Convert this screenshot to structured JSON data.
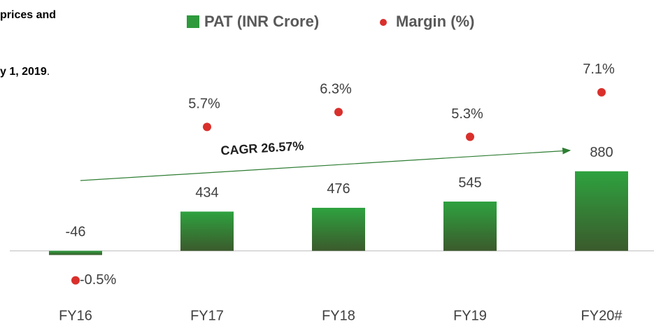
{
  "notes": {
    "line1": "prices and",
    "line2_bold": "y 1, 2019",
    "line2_rest": "."
  },
  "chart_data": {
    "type": "bar",
    "categories": [
      "FY16",
      "FY17",
      "FY18",
      "FY19",
      "FY20#"
    ],
    "series": [
      {
        "name": "PAT (INR Crore)",
        "color": "#2e9a3c",
        "values": [
          -46,
          434,
          476,
          545,
          880
        ]
      },
      {
        "name": "Margin (%)",
        "color": "#d9302c",
        "axis": "y2",
        "values": [
          -0.5,
          5.7,
          6.3,
          5.3,
          7.1
        ],
        "value_labels": [
          "-0.5%",
          "5.7%",
          "6.3%",
          "5.3%",
          "7.1%"
        ]
      }
    ],
    "annotation": "CAGR 26.57%",
    "ylim": [
      -600,
      2000
    ],
    "y2lim": [
      -1.5,
      8
    ],
    "grid": false
  }
}
